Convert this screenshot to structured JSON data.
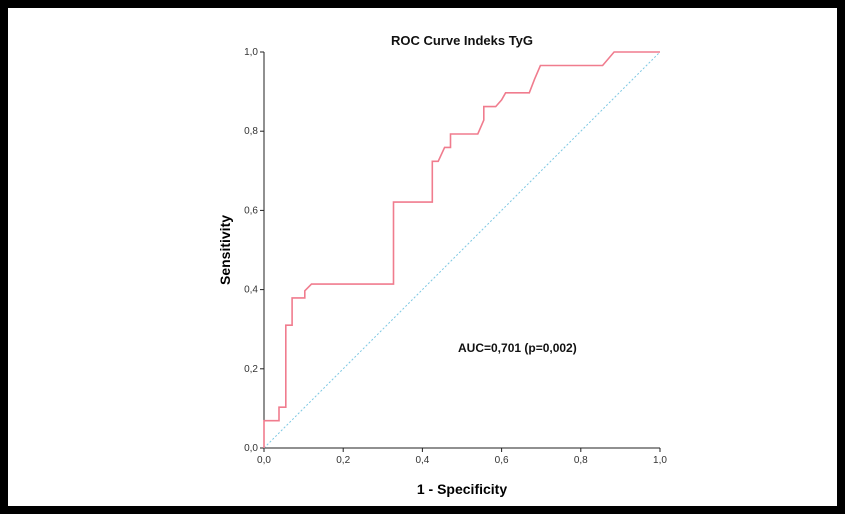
{
  "chart_data": {
    "type": "line",
    "title": "ROC Curve Indeks TyG",
    "xlabel": "1 - Specificity",
    "ylabel": "Sensitivity",
    "xlim": [
      0,
      1
    ],
    "ylim": [
      0,
      1
    ],
    "x_ticks": [
      "0,0",
      "0,2",
      "0,4",
      "0,6",
      "0,8",
      "1,0"
    ],
    "y_ticks": [
      "0,0",
      "0,2",
      "0,4",
      "0,6",
      "0,8",
      "1,0"
    ],
    "grid": false,
    "annotation": "AUC=0,701  (p=0,002)",
    "series": [
      {
        "color": "#f07c8e",
        "points": [
          [
            0.0,
            0.0
          ],
          [
            0.0,
            0.069
          ],
          [
            0.038,
            0.069
          ],
          [
            0.038,
            0.103
          ],
          [
            0.055,
            0.103
          ],
          [
            0.055,
            0.31
          ],
          [
            0.071,
            0.31
          ],
          [
            0.071,
            0.379
          ],
          [
            0.103,
            0.379
          ],
          [
            0.103,
            0.397
          ],
          [
            0.12,
            0.414
          ],
          [
            0.327,
            0.414
          ],
          [
            0.327,
            0.621
          ],
          [
            0.425,
            0.621
          ],
          [
            0.425,
            0.724
          ],
          [
            0.44,
            0.724
          ],
          [
            0.456,
            0.759
          ],
          [
            0.471,
            0.759
          ],
          [
            0.471,
            0.793
          ],
          [
            0.54,
            0.793
          ],
          [
            0.555,
            0.828
          ],
          [
            0.555,
            0.862
          ],
          [
            0.585,
            0.862
          ],
          [
            0.6,
            0.879
          ],
          [
            0.61,
            0.897
          ],
          [
            0.67,
            0.897
          ],
          [
            0.683,
            0.931
          ],
          [
            0.698,
            0.966
          ],
          [
            0.855,
            0.966
          ],
          [
            0.884,
            1.0
          ],
          [
            1.0,
            1.0
          ]
        ]
      },
      {
        "color": "#7ec8e3",
        "dashed": true,
        "points": [
          [
            0,
            0
          ],
          [
            1,
            1
          ]
        ]
      }
    ]
  }
}
